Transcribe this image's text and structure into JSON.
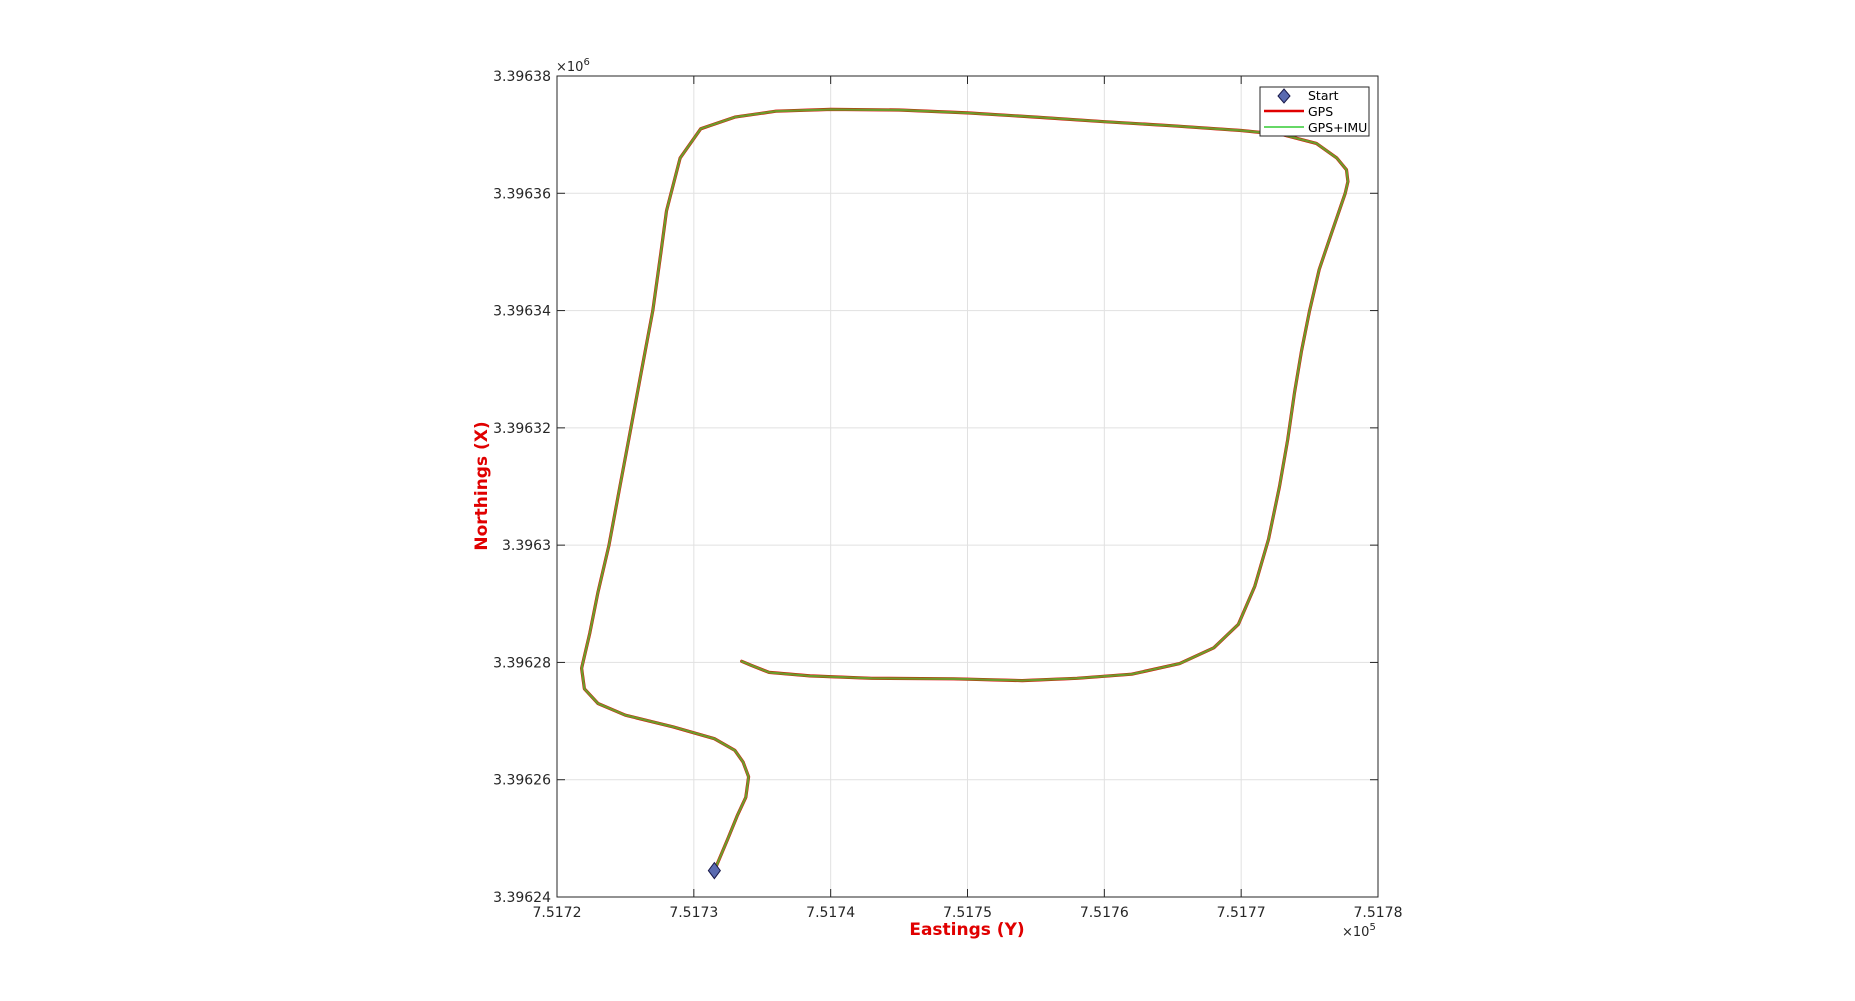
{
  "chart_data": {
    "type": "line",
    "title": "",
    "xlabel": "Eastings (Y)",
    "ylabel": "Northings (X)",
    "x_exponent_label": "×10",
    "x_exponent": "5",
    "y_exponent_label": "×10",
    "y_exponent": "6",
    "xlim": [
      751720,
      751780
    ],
    "ylim": [
      3396240,
      3396380
    ],
    "x_ticks": [
      751720,
      751730,
      751740,
      751750,
      751760,
      751770,
      751780
    ],
    "x_tick_labels": [
      "7.5172",
      "7.5173",
      "7.5174",
      "7.5175",
      "7.5176",
      "7.5177",
      "7.5178"
    ],
    "y_ticks": [
      3396240,
      3396260,
      3396280,
      3396300,
      3396320,
      3396340,
      3396360,
      3396380
    ],
    "y_tick_labels": [
      "3.39624",
      "3.39626",
      "3.39628",
      "3.3963",
      "3.39632",
      "3.39634",
      "3.39636",
      "3.39638"
    ],
    "grid": true,
    "legend_position": "top-right",
    "legend": [
      "Start",
      "GPS",
      "GPS+IMU"
    ],
    "colors": {
      "gps": "#e00000",
      "gps_imu": "#33cc33",
      "overlap": "#6e9a2a",
      "start_marker": "#5a6ab0",
      "axis_label": "#e00000"
    },
    "start": {
      "x": 751731.5,
      "y": 3396244.5
    },
    "series": [
      {
        "name": "GPS",
        "x": [
          751731.5,
          751732.5,
          751733.2,
          751733.8,
          751734.0,
          751733.6,
          751733.0,
          751731.5,
          751728.5,
          751725.0,
          751723.0,
          751722.0,
          751721.8,
          751722.4,
          751723.0,
          751723.8,
          751724.6,
          751725.4,
          751726.2,
          751727.0,
          751727.6,
          751728.0,
          751729.0,
          751730.5,
          751733.0,
          751736.0,
          751740.0,
          751745.0,
          751750.0,
          751755.0,
          751760.0,
          751765.0,
          751770.0,
          751773.0,
          751775.5,
          751777.0,
          751777.7,
          751777.8,
          751777.6,
          751776.5,
          751775.7,
          751775.0,
          751774.4,
          751773.9,
          751773.4,
          751772.8,
          751772.0,
          751771.0,
          751769.8,
          751768.0,
          751765.5,
          751762.0,
          751758.0,
          751754.0,
          751749.0,
          751743.0,
          751738.5,
          751735.5,
          751734.2,
          751733.5
        ],
        "y": [
          3396244.5,
          3396250.0,
          3396254.0,
          3396257.0,
          3396260.5,
          3396263.0,
          3396265.0,
          3396267.0,
          3396269.0,
          3396271.0,
          3396273.0,
          3396275.5,
          3396279.0,
          3396285.0,
          3396292.0,
          3396300.0,
          3396310.0,
          3396320.0,
          3396330.0,
          3396340.0,
          3396350.0,
          3396357.0,
          3396366.0,
          3396371.0,
          3396373.0,
          3396374.0,
          3396374.3,
          3396374.2,
          3396373.7,
          3396373.0,
          3396372.2,
          3396371.5,
          3396370.7,
          3396370.0,
          3396368.5,
          3396366.0,
          3396364.0,
          3396362.0,
          3396360.0,
          3396352.5,
          3396347.0,
          3396340.0,
          3396333.0,
          3396326.0,
          3396318.0,
          3396310.0,
          3396301.0,
          3396293.0,
          3396286.5,
          3396282.5,
          3396279.8,
          3396278.0,
          3396277.3,
          3396276.9,
          3396277.2,
          3396277.3,
          3396277.7,
          3396278.3,
          3396279.5,
          3396280.2
        ]
      },
      {
        "name": "GPS+IMU",
        "x": [
          751731.5,
          751732.5,
          751733.2,
          751733.8,
          751734.0,
          751733.6,
          751733.0,
          751731.5,
          751728.5,
          751725.0,
          751723.0,
          751722.0,
          751721.8,
          751722.4,
          751723.0,
          751723.8,
          751724.6,
          751725.4,
          751726.2,
          751727.0,
          751727.6,
          751728.0,
          751729.0,
          751730.5,
          751733.0,
          751736.0,
          751740.0,
          751745.0,
          751750.0,
          751755.0,
          751760.0,
          751765.0,
          751770.0,
          751773.0,
          751775.5,
          751777.0,
          751777.7,
          751777.8,
          751777.6,
          751776.5,
          751775.7,
          751775.0,
          751774.4,
          751773.9,
          751773.4,
          751772.8,
          751772.0,
          751771.0,
          751769.8,
          751768.0,
          751765.5,
          751762.0,
          751758.0,
          751754.0,
          751749.0,
          751743.0,
          751738.5,
          751735.5,
          751734.2,
          751733.5
        ],
        "y": [
          3396244.5,
          3396250.0,
          3396254.0,
          3396257.0,
          3396260.5,
          3396263.0,
          3396265.0,
          3396267.0,
          3396269.0,
          3396271.0,
          3396273.0,
          3396275.5,
          3396279.0,
          3396285.0,
          3396292.0,
          3396300.0,
          3396310.0,
          3396320.0,
          3396330.0,
          3396340.0,
          3396350.0,
          3396357.0,
          3396366.0,
          3396371.0,
          3396373.0,
          3396374.0,
          3396374.3,
          3396374.2,
          3396373.7,
          3396373.0,
          3396372.2,
          3396371.5,
          3396370.7,
          3396370.0,
          3396368.5,
          3396366.0,
          3396364.0,
          3396362.0,
          3396360.0,
          3396352.5,
          3396347.0,
          3396340.0,
          3396333.0,
          3396326.0,
          3396318.0,
          3396310.0,
          3396301.0,
          3396293.0,
          3396286.5,
          3396282.5,
          3396279.8,
          3396278.0,
          3396277.3,
          3396276.9,
          3396277.2,
          3396277.3,
          3396277.7,
          3396278.3,
          3396279.5,
          3396280.2
        ]
      }
    ]
  }
}
